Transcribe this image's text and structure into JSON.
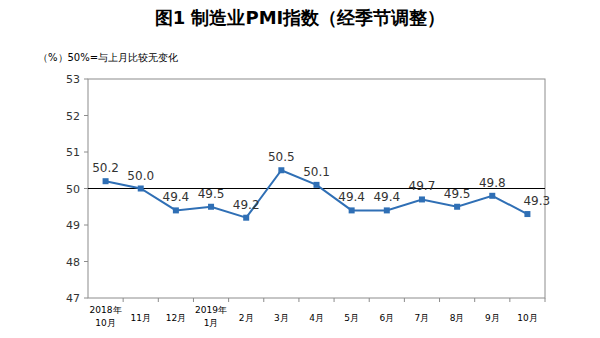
{
  "chart_data": {
    "type": "line",
    "title": "图1 制造业PMI指数（经季节调整）",
    "y_label": "（%）50%=与上月比较无变化",
    "categories": [
      "2018年\n10月",
      "11月",
      "12月",
      "2019年\n1月",
      "2月",
      "3月",
      "4月",
      "5月",
      "6月",
      "7月",
      "8月",
      "9月",
      "10月"
    ],
    "values": [
      50.2,
      50.0,
      49.4,
      49.5,
      49.2,
      50.5,
      50.1,
      49.4,
      49.4,
      49.7,
      49.5,
      49.8,
      49.3
    ],
    "value_labels": [
      "50.2",
      "50.0",
      "49.4",
      "49.5",
      "49.2",
      "50.5",
      "50.1",
      "49.4",
      "49.4",
      "49.7",
      "49.5",
      "49.8",
      "49.3"
    ],
    "color": "#2f6fb5",
    "marker": "square",
    "ylim": [
      47,
      53
    ],
    "yticks": [
      47,
      48,
      49,
      50,
      51,
      52,
      53
    ],
    "grid": false,
    "data_labels": true
  }
}
